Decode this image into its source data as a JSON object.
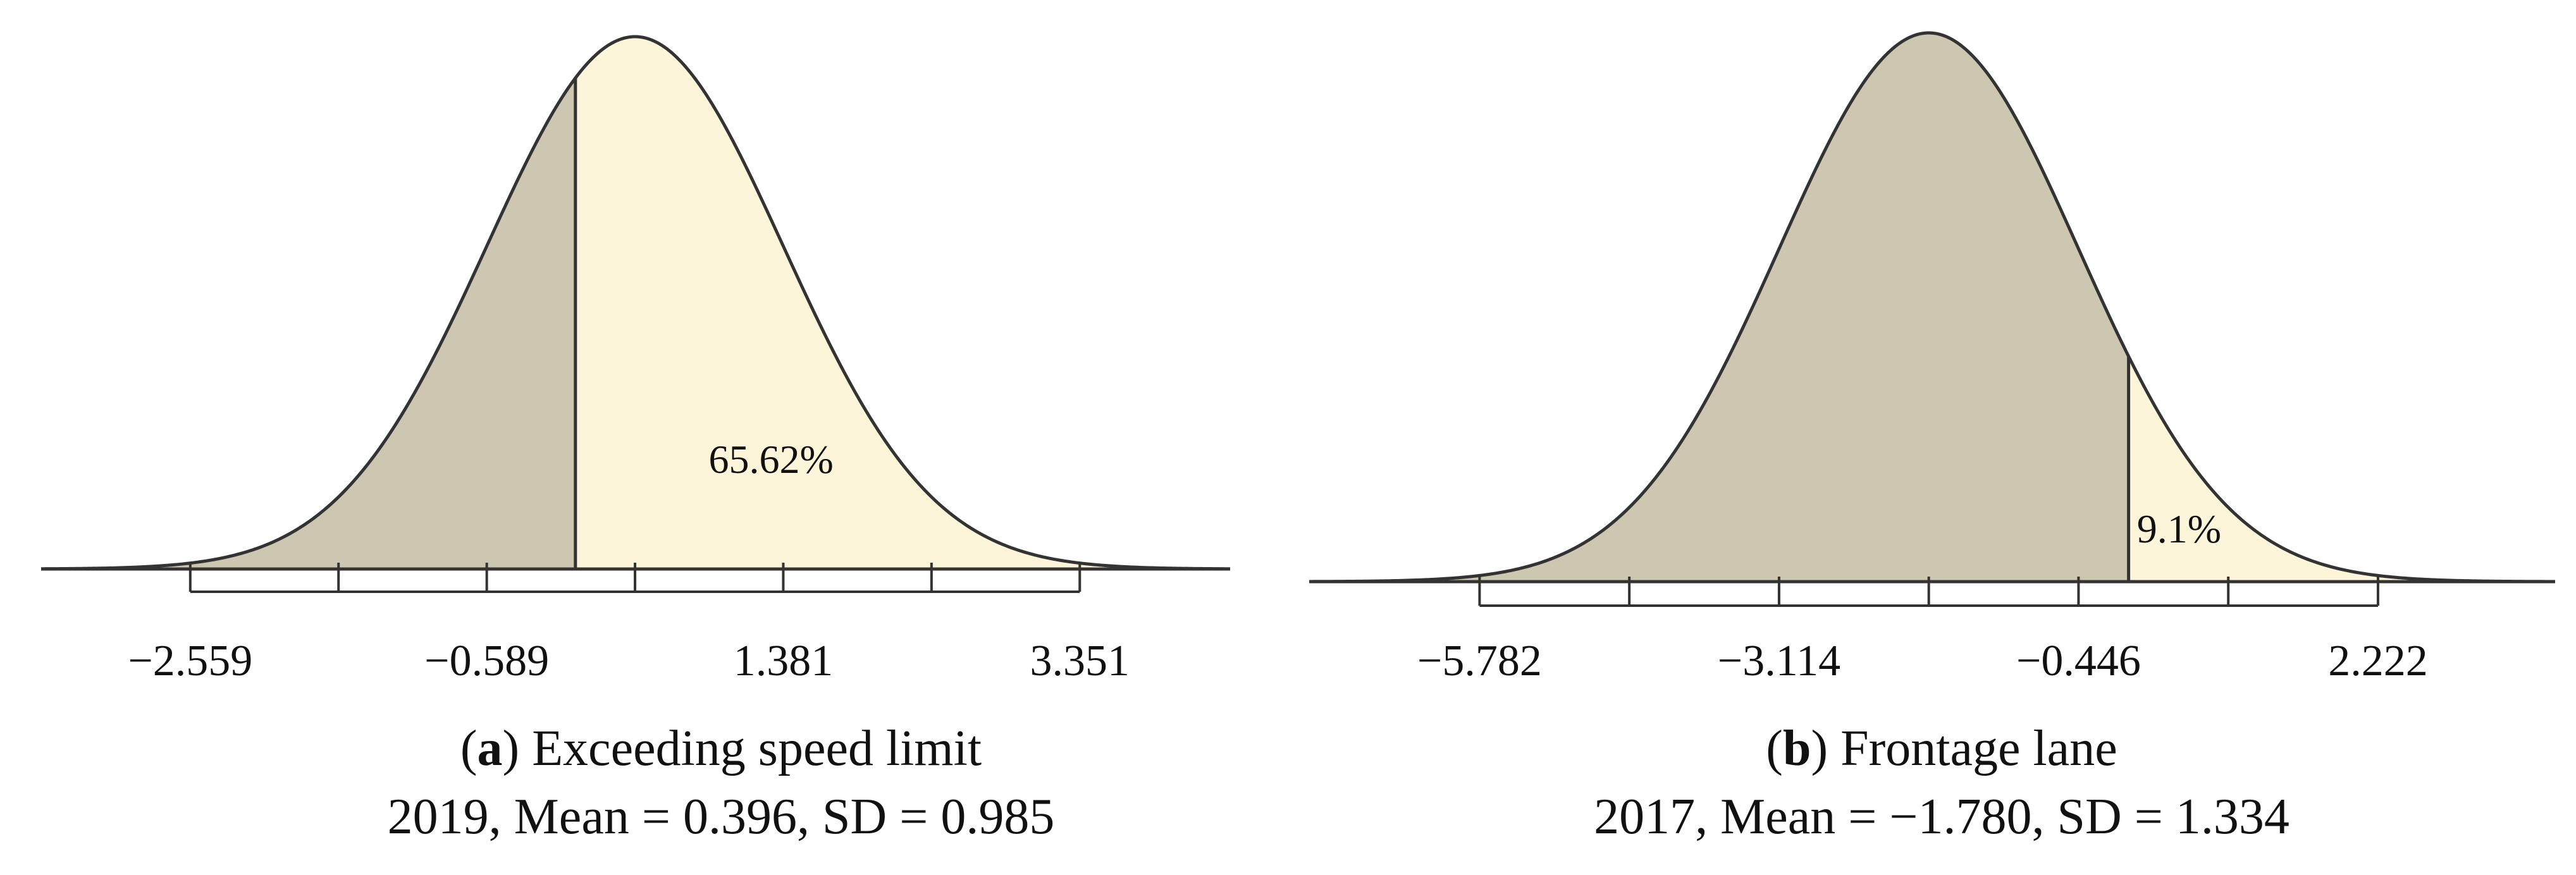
{
  "chart_data": [
    {
      "type": "normal-distribution",
      "panel_letter": "a",
      "title": "Exceeding speed limit",
      "subtitle": "2019, Mean = 0.396, SD = 0.985",
      "mean": 0.396,
      "sd": 0.985,
      "x_range": [
        -3.55,
        4.35
      ],
      "threshold": 0.0,
      "shaded_side": "right",
      "shaded_percent_label": "65.62%",
      "major_ticks": [
        -2.559,
        -0.589,
        1.381,
        3.351
      ],
      "tick_labels": [
        "−2.559",
        "−0.589",
        "1.381",
        "3.351"
      ],
      "minor_ticks": [
        -1.574,
        0.396,
        2.366
      ],
      "colors": {
        "left_fill": "#cdc6b1",
        "right_fill": "#fdf5da",
        "curve": "#333333",
        "axis": "#333333"
      }
    },
    {
      "type": "normal-distribution",
      "panel_letter": "b",
      "title": "Frontage lane",
      "subtitle": "2017, Mean = −1.780, SD = 1.334",
      "mean": -1.78,
      "sd": 1.334,
      "x_range": [
        -7.3,
        3.8
      ],
      "threshold": 0.0,
      "shaded_side": "right",
      "shaded_percent_label": "9.1%",
      "major_ticks": [
        -5.782,
        -3.114,
        -0.446,
        2.222
      ],
      "tick_labels": [
        "−5.782",
        "−3.114",
        "−0.446",
        "2.222"
      ],
      "minor_ticks": [
        -4.448,
        -1.78,
        0.888
      ],
      "colors": {
        "left_fill": "#cdc6b1",
        "right_fill": "#fdf5da",
        "curve": "#333333",
        "axis": "#333333"
      }
    }
  ]
}
